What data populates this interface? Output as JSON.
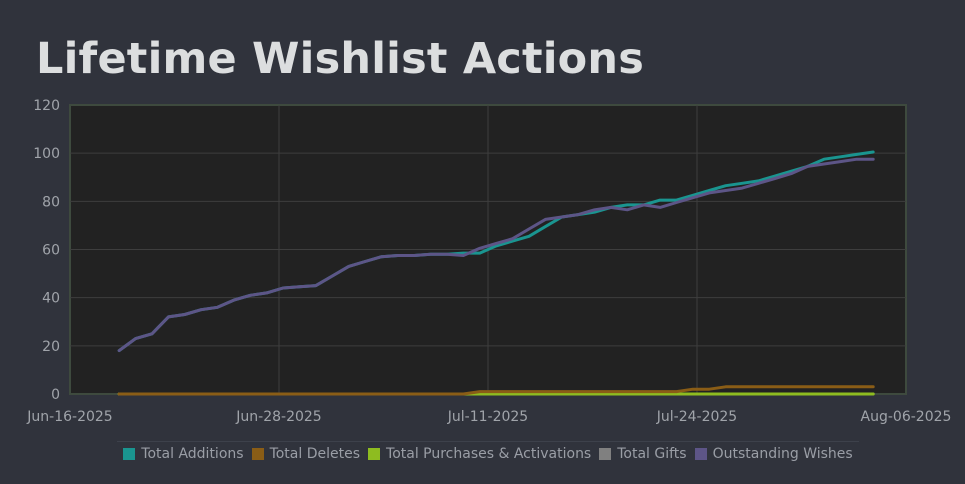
{
  "chart_data": {
    "type": "line",
    "title": "Lifetime Wishlist Actions",
    "ylim": [
      0,
      120
    ],
    "yticks": [
      0,
      20,
      40,
      60,
      80,
      100,
      120
    ],
    "xticks": [
      "Jun-16-2025",
      "Jun-28-2025",
      "Jul-11-2025",
      "Jul-24-2025",
      "Aug-06-2025"
    ],
    "xlim_days": [
      0,
      51
    ],
    "series": [
      {
        "name": "Total Additions",
        "color": "#1a9590",
        "x": [
          3,
          4,
          5,
          6,
          7,
          8,
          9,
          10,
          11,
          12,
          13,
          14,
          15,
          16,
          17,
          18,
          19,
          20,
          21,
          22,
          23,
          24,
          25,
          26,
          27,
          28,
          29,
          30,
          31,
          32,
          33,
          34,
          35,
          36,
          37,
          38,
          39,
          40,
          41,
          42,
          43,
          44,
          45,
          46,
          47,
          48,
          49
        ],
        "values": [
          18,
          23,
          25,
          32,
          33,
          35,
          36,
          39,
          41,
          42,
          44,
          44.5,
          45,
          49,
          53,
          55,
          57,
          57.5,
          57.5,
          58,
          58,
          58.5,
          58.5,
          61.5,
          63.5,
          65.5,
          69.5,
          73.5,
          74.5,
          75.5,
          77.5,
          78.5,
          78.5,
          80.5,
          80.5,
          82.5,
          84.5,
          86.5,
          87.5,
          88.5,
          90.5,
          92.5,
          94.5,
          97.5,
          98.5,
          99.5,
          100.5
        ]
      },
      {
        "name": "Total Deletes",
        "color": "#8a5d16",
        "x": [
          3,
          24,
          25,
          37,
          38,
          39,
          40,
          41,
          49
        ],
        "values": [
          0,
          0,
          1,
          1,
          2,
          2,
          3,
          3,
          3
        ]
      },
      {
        "name": "Total Purchases & Activations",
        "color": "#8ebc20",
        "x": [
          3,
          49
        ],
        "values": [
          0,
          0
        ]
      },
      {
        "name": "Total Gifts",
        "color": "#808080",
        "x": [
          3,
          49
        ],
        "values": [
          0,
          0
        ]
      },
      {
        "name": "Outstanding Wishes",
        "color": "#5d5587",
        "x": [
          3,
          4,
          5,
          6,
          7,
          8,
          9,
          10,
          11,
          12,
          13,
          14,
          15,
          16,
          17,
          18,
          19,
          20,
          21,
          22,
          23,
          24,
          25,
          26,
          27,
          28,
          29,
          30,
          31,
          32,
          33,
          34,
          35,
          36,
          37,
          38,
          39,
          40,
          41,
          42,
          43,
          44,
          45,
          46,
          47,
          48,
          49
        ],
        "values": [
          18,
          23,
          25,
          32,
          33,
          35,
          36,
          39,
          41,
          42,
          44,
          44.5,
          45,
          49,
          53,
          55,
          57,
          57.5,
          57.5,
          58,
          58,
          57.5,
          60.5,
          62.5,
          64.5,
          68.5,
          72.5,
          73.5,
          74.5,
          76.5,
          77.5,
          76.5,
          78.5,
          77.5,
          79.5,
          81.5,
          83.5,
          84.5,
          85.5,
          87.5,
          89.5,
          91.5,
          94.5,
          95.5,
          96.5,
          97.5,
          97.5
        ]
      }
    ]
  }
}
